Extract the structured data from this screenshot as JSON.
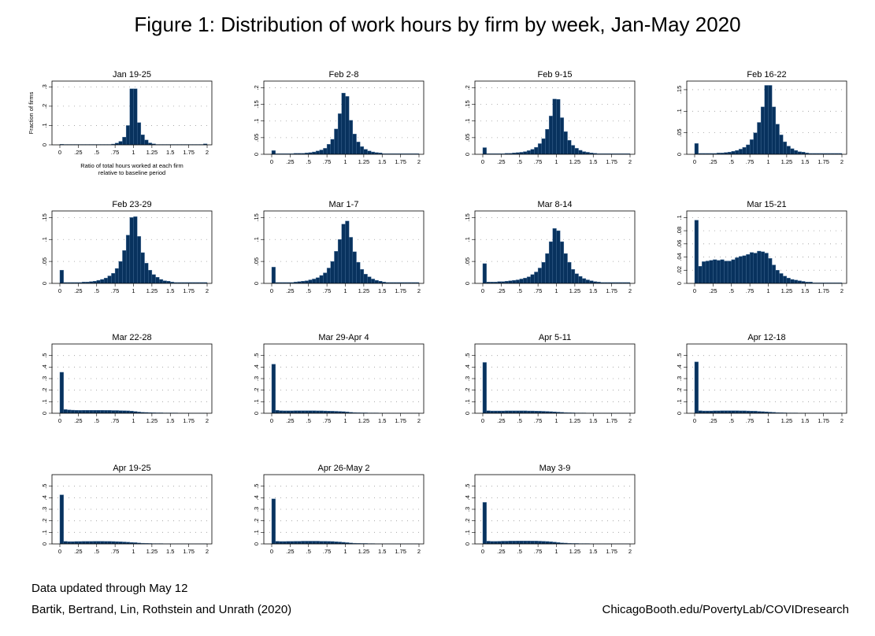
{
  "title": "Figure 1: Distribution of work hours by firm by week, Jan-May 2020",
  "footer": {
    "updated": "Data updated through May 12",
    "citation": "Bartik, Bertrand, Lin, Rothstein and Unrath (2020)",
    "url": "ChicagoBooth.edu/PovertyLab/COVIDresearch"
  },
  "colors": {
    "bar": "#08325e",
    "bar_edge": "#48709a",
    "grid": "#9a9a9a"
  },
  "chart_data": {
    "type": "bar",
    "bin_width": 0.05,
    "bin_start": 0,
    "xlim": [
      0,
      2
    ],
    "xticks": [
      0,
      0.25,
      0.5,
      0.75,
      1,
      1.25,
      1.5,
      1.75,
      2
    ],
    "xtick_labels": [
      "0",
      ".25",
      ".5",
      ".75",
      "1",
      "1.25",
      "1.5",
      "1.75",
      "2"
    ],
    "ylabel": "Fraction of firms",
    "xlabel": [
      "Ratio of total hours worked at each firm",
      "relative to baseline period"
    ],
    "panels": [
      {
        "title": "Jan 19-25",
        "ylim": [
          0,
          0.33
        ],
        "yticks": [
          0,
          0.1,
          0.2,
          0.3
        ],
        "ytick_labels": [
          "0",
          ".1",
          ".2",
          ".3"
        ],
        "values": [
          0.003,
          0.002,
          0.002,
          0.002,
          0.002,
          0.002,
          0.002,
          0.002,
          0.002,
          0.002,
          0.002,
          0.002,
          0.002,
          0.002,
          0.004,
          0.009,
          0.018,
          0.04,
          0.1,
          0.29,
          0.29,
          0.115,
          0.052,
          0.025,
          0.01,
          0.005,
          0.002,
          0.002,
          0.002,
          0.002,
          0.002,
          0.002,
          0.002,
          0.002,
          0.002,
          0.002,
          0.002,
          0.002,
          0.002,
          0.005
        ]
      },
      {
        "title": "Feb 2-8",
        "ylim": [
          0,
          0.22
        ],
        "yticks": [
          0,
          0.05,
          0.1,
          0.15,
          0.2
        ],
        "ytick_labels": [
          "0",
          ".05",
          ".1",
          ".15",
          ".2"
        ],
        "values": [
          0.011,
          0.002,
          0.002,
          0.002,
          0.002,
          0.002,
          0.003,
          0.003,
          0.003,
          0.004,
          0.005,
          0.007,
          0.01,
          0.013,
          0.018,
          0.03,
          0.045,
          0.076,
          0.122,
          0.184,
          0.174,
          0.102,
          0.061,
          0.037,
          0.023,
          0.015,
          0.01,
          0.007,
          0.005,
          0.004,
          0.002,
          0.002,
          0.002,
          0.002,
          0.002,
          0.002,
          0.002,
          0.002,
          0.002,
          0.002
        ]
      },
      {
        "title": "Feb 9-15",
        "ylim": [
          0,
          0.22
        ],
        "yticks": [
          0,
          0.05,
          0.1,
          0.15,
          0.2
        ],
        "ytick_labels": [
          "0",
          ".05",
          ".1",
          ".15",
          ".2"
        ],
        "values": [
          0.02,
          0.002,
          0.002,
          0.002,
          0.002,
          0.002,
          0.003,
          0.003,
          0.004,
          0.005,
          0.006,
          0.008,
          0.011,
          0.015,
          0.021,
          0.032,
          0.047,
          0.075,
          0.115,
          0.166,
          0.165,
          0.11,
          0.068,
          0.042,
          0.027,
          0.018,
          0.012,
          0.008,
          0.006,
          0.004,
          0.003,
          0.002,
          0.002,
          0.002,
          0.002,
          0.002,
          0.002,
          0.002,
          0.002,
          0.002
        ]
      },
      {
        "title": "Feb 16-22",
        "ylim": [
          0,
          0.17
        ],
        "yticks": [
          0,
          0.05,
          0.1,
          0.15
        ],
        "ytick_labels": [
          "0",
          ".05",
          ".1",
          ".15"
        ],
        "values": [
          0.025,
          0.002,
          0.002,
          0.002,
          0.002,
          0.002,
          0.003,
          0.003,
          0.004,
          0.005,
          0.007,
          0.009,
          0.012,
          0.016,
          0.022,
          0.034,
          0.05,
          0.074,
          0.11,
          0.16,
          0.16,
          0.11,
          0.07,
          0.045,
          0.029,
          0.019,
          0.013,
          0.009,
          0.006,
          0.005,
          0.003,
          0.002,
          0.002,
          0.002,
          0.002,
          0.002,
          0.002,
          0.002,
          0.002,
          0.002
        ]
      },
      {
        "title": "Feb 23-29",
        "ylim": [
          0,
          0.165
        ],
        "yticks": [
          0,
          0.05,
          0.1,
          0.15
        ],
        "ytick_labels": [
          "0",
          ".05",
          ".1",
          ".15"
        ],
        "values": [
          0.03,
          0.002,
          0.002,
          0.002,
          0.002,
          0.002,
          0.003,
          0.003,
          0.004,
          0.005,
          0.007,
          0.009,
          0.012,
          0.017,
          0.023,
          0.034,
          0.05,
          0.075,
          0.11,
          0.15,
          0.152,
          0.107,
          0.07,
          0.046,
          0.03,
          0.02,
          0.014,
          0.009,
          0.006,
          0.005,
          0.003,
          0.002,
          0.002,
          0.002,
          0.002,
          0.002,
          0.002,
          0.002,
          0.002,
          0.002
        ]
      },
      {
        "title": "Mar 1-7",
        "ylim": [
          0,
          0.165
        ],
        "yticks": [
          0,
          0.05,
          0.1,
          0.15
        ],
        "ytick_labels": [
          "0",
          ".05",
          ".1",
          ".15"
        ],
        "values": [
          0.037,
          0.002,
          0.002,
          0.002,
          0.002,
          0.002,
          0.003,
          0.004,
          0.005,
          0.006,
          0.008,
          0.01,
          0.013,
          0.018,
          0.024,
          0.035,
          0.05,
          0.073,
          0.1,
          0.135,
          0.142,
          0.105,
          0.072,
          0.048,
          0.032,
          0.021,
          0.015,
          0.01,
          0.007,
          0.005,
          0.003,
          0.002,
          0.002,
          0.002,
          0.002,
          0.002,
          0.002,
          0.002,
          0.002,
          0.002
        ]
      },
      {
        "title": "Mar 8-14",
        "ylim": [
          0,
          0.165
        ],
        "yticks": [
          0,
          0.05,
          0.1,
          0.15
        ],
        "ytick_labels": [
          "0",
          ".05",
          ".1",
          ".15"
        ],
        "values": [
          0.045,
          0.003,
          0.003,
          0.003,
          0.004,
          0.004,
          0.005,
          0.006,
          0.007,
          0.008,
          0.01,
          0.012,
          0.015,
          0.02,
          0.026,
          0.035,
          0.048,
          0.068,
          0.095,
          0.125,
          0.12,
          0.095,
          0.068,
          0.048,
          0.032,
          0.022,
          0.016,
          0.011,
          0.008,
          0.006,
          0.004,
          0.003,
          0.002,
          0.002,
          0.002,
          0.002,
          0.002,
          0.002,
          0.002,
          0.002
        ]
      },
      {
        "title": "Mar 15-21",
        "ylim": [
          0,
          0.11
        ],
        "yticks": [
          0,
          0.02,
          0.04,
          0.06,
          0.08,
          0.1
        ],
        "ytick_labels": [
          "0",
          ".02",
          ".04",
          ".06",
          ".08",
          ".1"
        ],
        "values": [
          0.096,
          0.026,
          0.033,
          0.034,
          0.035,
          0.036,
          0.035,
          0.036,
          0.034,
          0.034,
          0.036,
          0.039,
          0.041,
          0.042,
          0.044,
          0.047,
          0.046,
          0.049,
          0.048,
          0.046,
          0.038,
          0.028,
          0.02,
          0.015,
          0.011,
          0.008,
          0.006,
          0.005,
          0.004,
          0.003,
          0.002,
          0.002,
          0.001,
          0.001,
          0.001,
          0.001,
          0.001,
          0.001,
          0.001,
          0.001
        ]
      },
      {
        "title": "Mar 22-28",
        "ylim": [
          0,
          0.6
        ],
        "yticks": [
          0,
          0.1,
          0.2,
          0.3,
          0.4,
          0.5
        ],
        "ytick_labels": [
          "0",
          ".1",
          ".2",
          ".3",
          ".4",
          ".5"
        ],
        "values": [
          0.355,
          0.032,
          0.029,
          0.027,
          0.026,
          0.025,
          0.026,
          0.026,
          0.026,
          0.026,
          0.026,
          0.026,
          0.025,
          0.025,
          0.024,
          0.024,
          0.023,
          0.022,
          0.021,
          0.019,
          0.015,
          0.011,
          0.008,
          0.007,
          0.006,
          0.005,
          0.004,
          0.004,
          0.003,
          0.003,
          0.003,
          0.003,
          0.002,
          0.002,
          0.002,
          0.002,
          0.002,
          0.002,
          0.002,
          0.002
        ]
      },
      {
        "title": "Mar 29-Apr 4",
        "ylim": [
          0,
          0.6
        ],
        "yticks": [
          0,
          0.1,
          0.2,
          0.3,
          0.4,
          0.5
        ],
        "ytick_labels": [
          "0",
          ".1",
          ".2",
          ".3",
          ".4",
          ".5"
        ],
        "values": [
          0.425,
          0.025,
          0.022,
          0.021,
          0.021,
          0.021,
          0.022,
          0.022,
          0.022,
          0.022,
          0.022,
          0.022,
          0.021,
          0.021,
          0.02,
          0.019,
          0.018,
          0.017,
          0.016,
          0.014,
          0.011,
          0.008,
          0.006,
          0.005,
          0.004,
          0.004,
          0.003,
          0.003,
          0.003,
          0.002,
          0.002,
          0.002,
          0.002,
          0.002,
          0.002,
          0.002,
          0.002,
          0.002,
          0.002,
          0.002
        ]
      },
      {
        "title": "Apr 5-11",
        "ylim": [
          0,
          0.6
        ],
        "yticks": [
          0,
          0.1,
          0.2,
          0.3,
          0.4,
          0.5
        ],
        "ytick_labels": [
          "0",
          ".1",
          ".2",
          ".3",
          ".4",
          ".5"
        ],
        "values": [
          0.44,
          0.022,
          0.02,
          0.02,
          0.02,
          0.02,
          0.021,
          0.021,
          0.021,
          0.021,
          0.021,
          0.021,
          0.02,
          0.02,
          0.019,
          0.018,
          0.017,
          0.016,
          0.014,
          0.012,
          0.01,
          0.008,
          0.006,
          0.005,
          0.004,
          0.003,
          0.003,
          0.003,
          0.002,
          0.002,
          0.002,
          0.002,
          0.002,
          0.002,
          0.002,
          0.002,
          0.002,
          0.002,
          0.002,
          0.002
        ]
      },
      {
        "title": "Apr 12-18",
        "ylim": [
          0,
          0.6
        ],
        "yticks": [
          0,
          0.1,
          0.2,
          0.3,
          0.4,
          0.5
        ],
        "ytick_labels": [
          "0",
          ".1",
          ".2",
          ".3",
          ".4",
          ".5"
        ],
        "values": [
          0.445,
          0.022,
          0.02,
          0.02,
          0.02,
          0.021,
          0.021,
          0.022,
          0.022,
          0.022,
          0.022,
          0.022,
          0.021,
          0.021,
          0.02,
          0.019,
          0.018,
          0.016,
          0.014,
          0.012,
          0.01,
          0.008,
          0.006,
          0.005,
          0.004,
          0.003,
          0.003,
          0.003,
          0.002,
          0.002,
          0.002,
          0.002,
          0.002,
          0.002,
          0.002,
          0.002,
          0.002,
          0.002,
          0.002,
          0.002
        ]
      },
      {
        "title": "Apr 19-25",
        "ylim": [
          0,
          0.6
        ],
        "yticks": [
          0,
          0.1,
          0.2,
          0.3,
          0.4,
          0.5
        ],
        "ytick_labels": [
          "0",
          ".1",
          ".2",
          ".3",
          ".4",
          ".5"
        ],
        "values": [
          0.425,
          0.022,
          0.02,
          0.02,
          0.021,
          0.021,
          0.022,
          0.022,
          0.022,
          0.023,
          0.023,
          0.023,
          0.022,
          0.022,
          0.021,
          0.02,
          0.019,
          0.017,
          0.015,
          0.013,
          0.011,
          0.008,
          0.006,
          0.005,
          0.004,
          0.003,
          0.003,
          0.003,
          0.002,
          0.002,
          0.002,
          0.002,
          0.002,
          0.002,
          0.002,
          0.002,
          0.002,
          0.002,
          0.002,
          0.002
        ]
      },
      {
        "title": "Apr 26-May 2",
        "ylim": [
          0,
          0.6
        ],
        "yticks": [
          0,
          0.1,
          0.2,
          0.3,
          0.4,
          0.5
        ],
        "ytick_labels": [
          "0",
          ".1",
          ".2",
          ".3",
          ".4",
          ".5"
        ],
        "values": [
          0.39,
          0.023,
          0.021,
          0.021,
          0.022,
          0.022,
          0.023,
          0.023,
          0.024,
          0.024,
          0.024,
          0.024,
          0.024,
          0.023,
          0.023,
          0.022,
          0.021,
          0.019,
          0.017,
          0.014,
          0.011,
          0.008,
          0.006,
          0.005,
          0.004,
          0.004,
          0.003,
          0.003,
          0.002,
          0.002,
          0.002,
          0.002,
          0.002,
          0.002,
          0.002,
          0.002,
          0.002,
          0.002,
          0.002,
          0.002
        ]
      },
      {
        "title": "May 3-9",
        "ylim": [
          0,
          0.6
        ],
        "yticks": [
          0,
          0.1,
          0.2,
          0.3,
          0.4,
          0.5
        ],
        "ytick_labels": [
          "0",
          ".1",
          ".2",
          ".3",
          ".4",
          ".5"
        ],
        "values": [
          0.36,
          0.024,
          0.022,
          0.022,
          0.023,
          0.024,
          0.024,
          0.025,
          0.025,
          0.026,
          0.026,
          0.026,
          0.026,
          0.025,
          0.025,
          0.024,
          0.023,
          0.021,
          0.019,
          0.016,
          0.012,
          0.009,
          0.007,
          0.005,
          0.004,
          0.004,
          0.003,
          0.003,
          0.003,
          0.002,
          0.002,
          0.002,
          0.002,
          0.002,
          0.002,
          0.002,
          0.002,
          0.002,
          0.002,
          0.002
        ]
      }
    ]
  }
}
